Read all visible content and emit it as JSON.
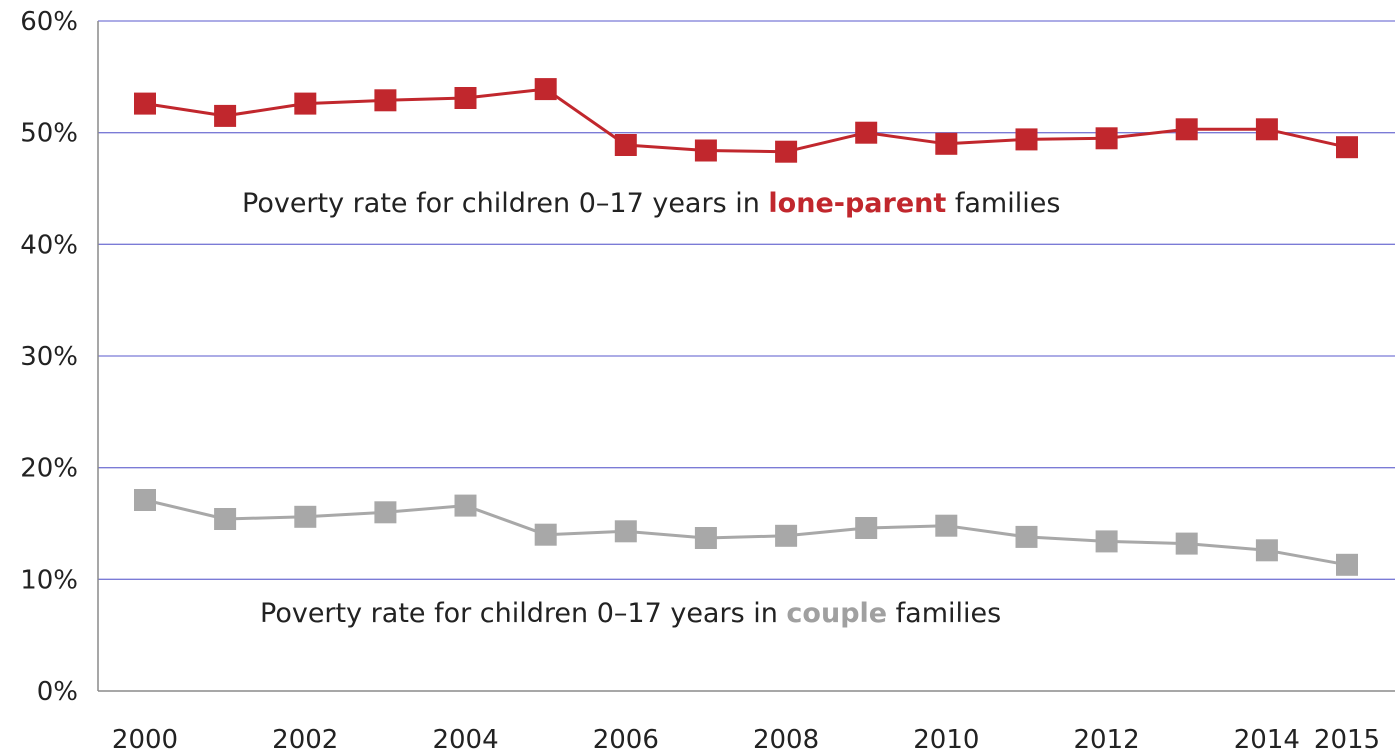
{
  "chart_data": {
    "type": "line",
    "title": "",
    "xlabel": "",
    "ylabel": "",
    "xlim": [
      2000,
      2015
    ],
    "ylim": [
      0,
      60
    ],
    "grid": true,
    "y_ticks": [
      {
        "value": 0,
        "label": "0%"
      },
      {
        "value": 10,
        "label": "10%"
      },
      {
        "value": 20,
        "label": "20%"
      },
      {
        "value": 30,
        "label": "30%"
      },
      {
        "value": 40,
        "label": "40%"
      },
      {
        "value": 50,
        "label": "50%"
      },
      {
        "value": 60,
        "label": "60%"
      }
    ],
    "x_ticks": [
      {
        "value": 2000,
        "label": "2000"
      },
      {
        "value": 2002,
        "label": "2002"
      },
      {
        "value": 2004,
        "label": "2004"
      },
      {
        "value": 2006,
        "label": "2006"
      },
      {
        "value": 2008,
        "label": "2008"
      },
      {
        "value": 2010,
        "label": "2010"
      },
      {
        "value": 2012,
        "label": "2012"
      },
      {
        "value": 2014,
        "label": "2014"
      },
      {
        "value": 2015,
        "label": "2015"
      }
    ],
    "x": [
      2000,
      2001,
      2002,
      2003,
      2004,
      2005,
      2006,
      2007,
      2008,
      2009,
      2010,
      2011,
      2012,
      2013,
      2014,
      2015
    ],
    "series": [
      {
        "key": "lone-parent",
        "color": "#c1272d",
        "values": [
          52.6,
          51.5,
          52.6,
          52.9,
          53.1,
          53.9,
          48.9,
          48.4,
          48.3,
          50.0,
          49.0,
          49.4,
          49.5,
          50.3,
          50.3,
          48.7
        ]
      },
      {
        "key": "couple",
        "color": "#a8a8a8",
        "values": [
          17.1,
          15.4,
          15.6,
          16.0,
          16.6,
          14.0,
          14.3,
          13.7,
          13.9,
          14.6,
          14.8,
          13.8,
          13.4,
          13.2,
          12.6,
          11.3
        ]
      }
    ],
    "annotations": [
      {
        "key": "lone-parent-label",
        "prefix": "Poverty rate for children 0–17 years in ",
        "emphasis": "lone-parent",
        "suffix": " families",
        "emphasis_color": "#c1272d"
      },
      {
        "key": "couple-label",
        "prefix": "Poverty rate for children 0–17 years in ",
        "emphasis": "couple",
        "suffix": " families",
        "emphasis_color": "#a0a0a0"
      }
    ],
    "gridline_color": "#7b7bd6",
    "axis_color": "#8a8a8a"
  }
}
